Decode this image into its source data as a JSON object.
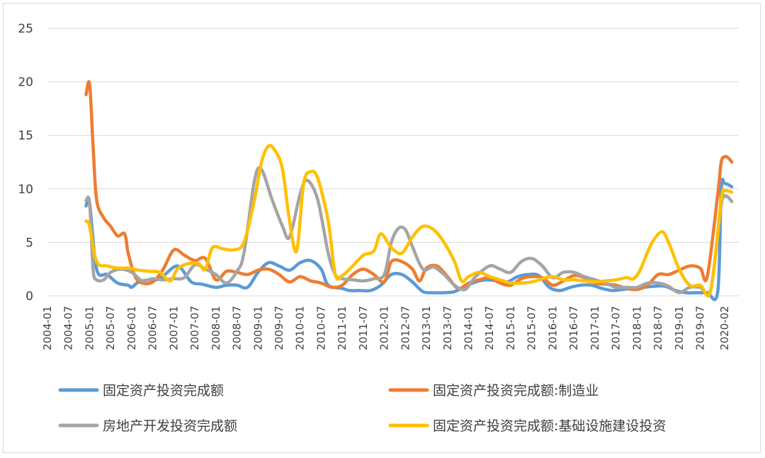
{
  "chart_data": {
    "type": "line",
    "title": "",
    "xlabel": "",
    "ylabel": "",
    "ylim": [
      0,
      25
    ],
    "yticks": [
      "0",
      "5",
      "10",
      "15",
      "20",
      "25"
    ],
    "grid": "horizontal",
    "legend_position": "bottom",
    "x_tick_labels": [
      "2004-01",
      "2004-07",
      "2005-01",
      "2005-07",
      "2006-01",
      "2006-07",
      "2007-01",
      "2007-07",
      "2008-01",
      "2008-07",
      "2009-01",
      "2009-07",
      "2010-01",
      "2010-07",
      "2011-01",
      "2011-07",
      "2012-01",
      "2012-07",
      "2013-01",
      "2013-07",
      "2014-01",
      "2014-07",
      "2015-01",
      "2015-07",
      "2016-01",
      "2016-07",
      "2017-01",
      "2017-07",
      "2018-01",
      "2018-07",
      "2019-01",
      "2019-07",
      "2020-02"
    ],
    "series": [
      {
        "name": "固定资产投资完成额",
        "color": "#5B9BD5",
        "points": [
          [
            "2004-12",
            8.4
          ],
          [
            "2005-01",
            8.7
          ],
          [
            "2005-03",
            2.5
          ],
          [
            "2005-06",
            2.0
          ],
          [
            "2005-09",
            1.2
          ],
          [
            "2005-12",
            1.0
          ],
          [
            "2006-01",
            0.8
          ],
          [
            "2006-03",
            1.3
          ],
          [
            "2006-06",
            1.5
          ],
          [
            "2006-09",
            1.6
          ],
          [
            "2007-01",
            2.7
          ],
          [
            "2007-03",
            2.6
          ],
          [
            "2007-06",
            1.3
          ],
          [
            "2007-09",
            1.1
          ],
          [
            "2008-01",
            0.8
          ],
          [
            "2008-04",
            1.0
          ],
          [
            "2008-07",
            1.0
          ],
          [
            "2008-10",
            0.8
          ],
          [
            "2009-01",
            2.2
          ],
          [
            "2009-04",
            3.1
          ],
          [
            "2009-07",
            2.8
          ],
          [
            "2009-10",
            2.4
          ],
          [
            "2010-01",
            3.1
          ],
          [
            "2010-04",
            3.3
          ],
          [
            "2010-07",
            2.5
          ],
          [
            "2010-09",
            1.0
          ],
          [
            "2011-01",
            0.7
          ],
          [
            "2011-03",
            0.5
          ],
          [
            "2011-06",
            0.5
          ],
          [
            "2011-09",
            0.5
          ],
          [
            "2011-12",
            1.0
          ],
          [
            "2012-03",
            2.0
          ],
          [
            "2012-06",
            2.0
          ],
          [
            "2012-09",
            1.3
          ],
          [
            "2012-12",
            0.4
          ],
          [
            "2013-03",
            0.3
          ],
          [
            "2013-06",
            0.3
          ],
          [
            "2013-09",
            0.4
          ],
          [
            "2013-12",
            0.9
          ],
          [
            "2014-03",
            1.3
          ],
          [
            "2014-06",
            1.5
          ],
          [
            "2014-09",
            1.4
          ],
          [
            "2014-12",
            1.3
          ],
          [
            "2015-03",
            1.8
          ],
          [
            "2015-06",
            2.0
          ],
          [
            "2015-09",
            1.9
          ],
          [
            "2015-12",
            0.8
          ],
          [
            "2016-03",
            0.5
          ],
          [
            "2016-06",
            0.8
          ],
          [
            "2016-09",
            1.0
          ],
          [
            "2016-12",
            1.0
          ],
          [
            "2017-03",
            0.7
          ],
          [
            "2017-06",
            0.5
          ],
          [
            "2017-09",
            0.6
          ],
          [
            "2017-12",
            0.7
          ],
          [
            "2018-03",
            0.8
          ],
          [
            "2018-06",
            0.9
          ],
          [
            "2018-09",
            0.9
          ],
          [
            "2018-12",
            0.5
          ],
          [
            "2019-03",
            0.3
          ],
          [
            "2019-06",
            0.3
          ],
          [
            "2019-09",
            0.3
          ],
          [
            "2019-12",
            0.4
          ],
          [
            "2020-01",
            10.0
          ],
          [
            "2020-02",
            10.5
          ],
          [
            "2020-04",
            10.2
          ]
        ]
      },
      {
        "name": "固定资产投资完成额:制造业",
        "color": "#ED7D31",
        "points": [
          [
            "2004-12",
            18.8
          ],
          [
            "2005-01",
            19.8
          ],
          [
            "2005-02",
            14.0
          ],
          [
            "2005-03",
            9.0
          ],
          [
            "2005-05",
            7.3
          ],
          [
            "2005-07",
            6.5
          ],
          [
            "2005-09",
            5.6
          ],
          [
            "2005-11",
            5.8
          ],
          [
            "2005-12",
            4.0
          ],
          [
            "2006-02",
            1.8
          ],
          [
            "2006-04",
            1.2
          ],
          [
            "2006-07",
            1.3
          ],
          [
            "2006-10",
            2.5
          ],
          [
            "2007-01",
            4.3
          ],
          [
            "2007-04",
            3.8
          ],
          [
            "2007-07",
            3.3
          ],
          [
            "2007-10",
            3.5
          ],
          [
            "2008-01",
            1.5
          ],
          [
            "2008-04",
            2.3
          ],
          [
            "2008-07",
            2.2
          ],
          [
            "2008-10",
            2.0
          ],
          [
            "2009-01",
            2.4
          ],
          [
            "2009-04",
            2.5
          ],
          [
            "2009-07",
            2.0
          ],
          [
            "2009-10",
            1.3
          ],
          [
            "2010-01",
            1.8
          ],
          [
            "2010-04",
            1.4
          ],
          [
            "2010-07",
            1.2
          ],
          [
            "2010-10",
            0.8
          ],
          [
            "2011-01",
            1.0
          ],
          [
            "2011-04",
            2.0
          ],
          [
            "2011-07",
            2.5
          ],
          [
            "2011-10",
            2.0
          ],
          [
            "2012-01",
            1.3
          ],
          [
            "2012-03",
            3.2
          ],
          [
            "2012-06",
            3.2
          ],
          [
            "2012-09",
            2.5
          ],
          [
            "2012-11",
            1.4
          ],
          [
            "2013-01",
            2.6
          ],
          [
            "2013-04",
            2.8
          ],
          [
            "2013-07",
            1.8
          ],
          [
            "2013-10",
            0.7
          ],
          [
            "2014-01",
            1.2
          ],
          [
            "2014-04",
            1.5
          ],
          [
            "2014-07",
            1.7
          ],
          [
            "2014-10",
            1.2
          ],
          [
            "2015-01",
            1.0
          ],
          [
            "2015-04",
            1.6
          ],
          [
            "2015-07",
            1.8
          ],
          [
            "2015-10",
            1.7
          ],
          [
            "2016-01",
            1.0
          ],
          [
            "2016-04",
            1.4
          ],
          [
            "2016-07",
            1.9
          ],
          [
            "2016-10",
            1.7
          ],
          [
            "2017-01",
            1.2
          ],
          [
            "2017-04",
            1.1
          ],
          [
            "2017-07",
            1.0
          ],
          [
            "2017-10",
            0.7
          ],
          [
            "2018-01",
            0.6
          ],
          [
            "2018-04",
            1.0
          ],
          [
            "2018-07",
            2.0
          ],
          [
            "2018-10",
            2.0
          ],
          [
            "2019-01",
            2.4
          ],
          [
            "2019-04",
            2.8
          ],
          [
            "2019-07",
            2.6
          ],
          [
            "2019-09",
            1.8
          ],
          [
            "2019-12",
            9.5
          ],
          [
            "2020-01",
            12.5
          ],
          [
            "2020-02",
            13.0
          ],
          [
            "2020-03",
            12.9
          ],
          [
            "2020-04",
            12.5
          ]
        ]
      },
      {
        "name": "房地产开发投资完成额",
        "color": "#A5A5A5",
        "points": [
          [
            "2004-12",
            8.9
          ],
          [
            "2005-01",
            8.7
          ],
          [
            "2005-02",
            2.5
          ],
          [
            "2005-03",
            1.5
          ],
          [
            "2005-05",
            1.5
          ],
          [
            "2005-07",
            2.2
          ],
          [
            "2005-10",
            2.5
          ],
          [
            "2006-01",
            2.2
          ],
          [
            "2006-04",
            1.4
          ],
          [
            "2006-07",
            1.6
          ],
          [
            "2006-10",
            1.5
          ],
          [
            "2007-01",
            1.6
          ],
          [
            "2007-04",
            1.7
          ],
          [
            "2007-07",
            2.9
          ],
          [
            "2007-10",
            2.5
          ],
          [
            "2008-01",
            2.0
          ],
          [
            "2008-04",
            1.2
          ],
          [
            "2008-07",
            2.3
          ],
          [
            "2008-09",
            4.0
          ],
          [
            "2008-12",
            10.8
          ],
          [
            "2009-02",
            11.8
          ],
          [
            "2009-05",
            9.0
          ],
          [
            "2009-08",
            6.5
          ],
          [
            "2009-10",
            5.5
          ],
          [
            "2010-01",
            9.5
          ],
          [
            "2010-03",
            10.8
          ],
          [
            "2010-06",
            9.0
          ],
          [
            "2010-09",
            4.0
          ],
          [
            "2010-11",
            2.0
          ],
          [
            "2011-01",
            1.6
          ],
          [
            "2011-04",
            1.5
          ],
          [
            "2011-07",
            1.4
          ],
          [
            "2011-10",
            1.6
          ],
          [
            "2012-01",
            2.0
          ],
          [
            "2012-03",
            5.0
          ],
          [
            "2012-05",
            6.3
          ],
          [
            "2012-07",
            6.2
          ],
          [
            "2012-09",
            4.6
          ],
          [
            "2012-12",
            2.5
          ],
          [
            "2013-03",
            2.7
          ],
          [
            "2013-06",
            2.0
          ],
          [
            "2013-09",
            1.0
          ],
          [
            "2013-12",
            0.6
          ],
          [
            "2014-03",
            1.8
          ],
          [
            "2014-07",
            2.8
          ],
          [
            "2014-10",
            2.5
          ],
          [
            "2015-01",
            2.2
          ],
          [
            "2015-04",
            3.2
          ],
          [
            "2015-07",
            3.5
          ],
          [
            "2015-10",
            2.8
          ],
          [
            "2016-01",
            1.7
          ],
          [
            "2016-04",
            2.2
          ],
          [
            "2016-07",
            2.2
          ],
          [
            "2016-10",
            1.8
          ],
          [
            "2017-01",
            1.5
          ],
          [
            "2017-04",
            1.2
          ],
          [
            "2017-07",
            0.8
          ],
          [
            "2017-10",
            0.8
          ],
          [
            "2018-01",
            0.8
          ],
          [
            "2018-04",
            1.2
          ],
          [
            "2018-07",
            1.2
          ],
          [
            "2018-10",
            0.9
          ],
          [
            "2019-01",
            0.3
          ],
          [
            "2019-04",
            0.8
          ],
          [
            "2019-07",
            0.8
          ],
          [
            "2019-10",
            0.6
          ],
          [
            "2020-01",
            8.5
          ],
          [
            "2020-02",
            9.3
          ],
          [
            "2020-03",
            9.2
          ],
          [
            "2020-04",
            8.8
          ]
        ]
      },
      {
        "name": "固定资产投资完成额:基础设施建设投资",
        "color": "#FFC000",
        "points": [
          [
            "2004-12",
            7.0
          ],
          [
            "2005-01",
            6.5
          ],
          [
            "2005-03",
            3.2
          ],
          [
            "2005-06",
            2.8
          ],
          [
            "2005-09",
            2.6
          ],
          [
            "2005-12",
            2.6
          ],
          [
            "2006-03",
            2.4
          ],
          [
            "2006-06",
            2.3
          ],
          [
            "2006-09",
            2.2
          ],
          [
            "2006-12",
            1.4
          ],
          [
            "2007-02",
            2.5
          ],
          [
            "2007-05",
            3.0
          ],
          [
            "2007-08",
            3.0
          ],
          [
            "2007-10",
            2.5
          ],
          [
            "2007-12",
            4.5
          ],
          [
            "2008-03",
            4.4
          ],
          [
            "2008-06",
            4.3
          ],
          [
            "2008-09",
            5.0
          ],
          [
            "2008-12",
            9.0
          ],
          [
            "2009-02",
            12.5
          ],
          [
            "2009-04",
            14.0
          ],
          [
            "2009-06",
            13.5
          ],
          [
            "2009-08",
            11.8
          ],
          [
            "2009-10",
            7.0
          ],
          [
            "2009-12",
            4.2
          ],
          [
            "2010-02",
            10.5
          ],
          [
            "2010-04",
            11.6
          ],
          [
            "2010-06",
            11.0
          ],
          [
            "2010-09",
            7.0
          ],
          [
            "2010-11",
            2.0
          ],
          [
            "2011-01",
            1.9
          ],
          [
            "2011-04",
            2.8
          ],
          [
            "2011-07",
            3.8
          ],
          [
            "2011-10",
            4.2
          ],
          [
            "2011-12",
            5.8
          ],
          [
            "2012-03",
            4.5
          ],
          [
            "2012-06",
            4.0
          ],
          [
            "2012-09",
            5.5
          ],
          [
            "2012-12",
            6.5
          ],
          [
            "2013-03",
            6.2
          ],
          [
            "2013-06",
            5.0
          ],
          [
            "2013-09",
            3.2
          ],
          [
            "2013-11",
            1.4
          ],
          [
            "2014-01",
            1.8
          ],
          [
            "2014-04",
            2.2
          ],
          [
            "2014-07",
            1.8
          ],
          [
            "2014-10",
            1.5
          ],
          [
            "2015-01",
            1.2
          ],
          [
            "2015-04",
            1.2
          ],
          [
            "2015-07",
            1.3
          ],
          [
            "2015-10",
            1.6
          ],
          [
            "2016-01",
            1.8
          ],
          [
            "2016-04",
            1.5
          ],
          [
            "2016-07",
            1.5
          ],
          [
            "2016-10",
            1.4
          ],
          [
            "2017-01",
            1.3
          ],
          [
            "2017-04",
            1.4
          ],
          [
            "2017-07",
            1.5
          ],
          [
            "2017-10",
            1.7
          ],
          [
            "2017-12",
            1.6
          ],
          [
            "2018-02",
            2.5
          ],
          [
            "2018-05",
            4.8
          ],
          [
            "2018-08",
            6.0
          ],
          [
            "2018-10",
            5.0
          ],
          [
            "2019-01",
            2.5
          ],
          [
            "2019-04",
            1.0
          ],
          [
            "2019-07",
            1.0
          ],
          [
            "2019-10",
            0.5
          ],
          [
            "2020-01",
            9.0
          ],
          [
            "2020-02",
            9.8
          ],
          [
            "2020-04",
            9.7
          ]
        ]
      }
    ]
  }
}
